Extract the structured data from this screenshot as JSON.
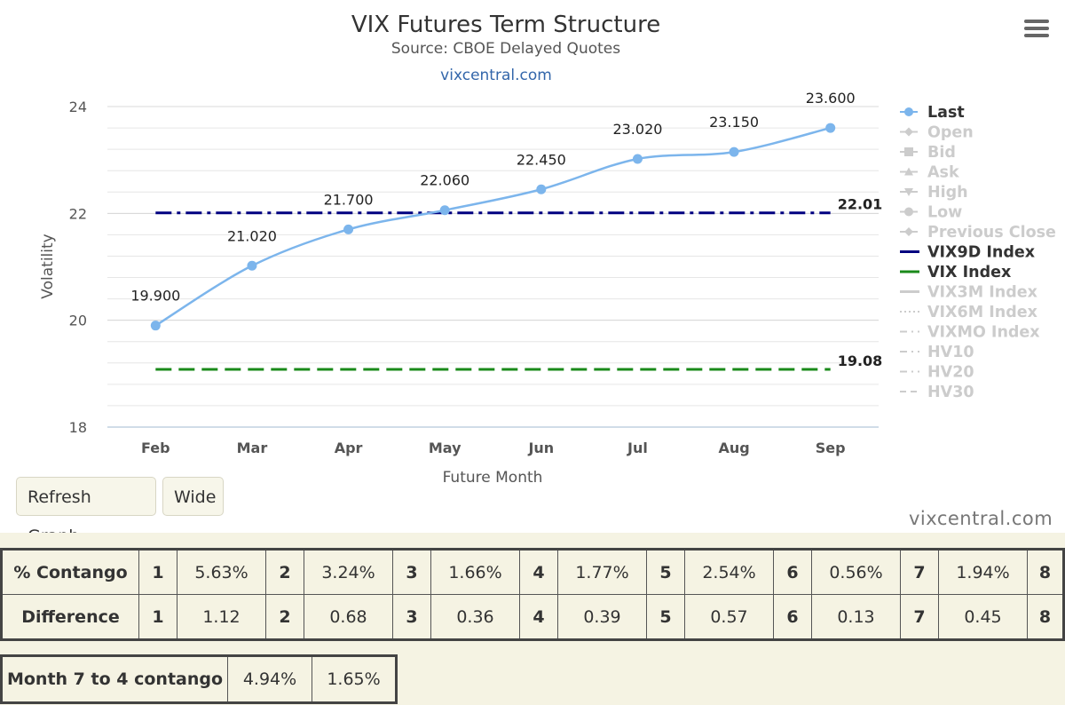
{
  "chart_data": {
    "type": "line",
    "title": "VIX Futures Term Structure",
    "subtitle": "Source: CBOE Delayed Quotes",
    "credit": "vixcentral.com",
    "xlabel": "Future Month",
    "ylabel": "Volatility",
    "categories": [
      "Feb",
      "Mar",
      "Apr",
      "May",
      "Jun",
      "Jul",
      "Aug",
      "Sep"
    ],
    "ylim": [
      18,
      24
    ],
    "yticks": [
      18,
      20,
      22,
      24
    ],
    "grid": true,
    "legend_position": "right",
    "series": [
      {
        "name": "Last",
        "values": [
          19.9,
          21.02,
          21.7,
          22.06,
          22.45,
          23.02,
          23.15,
          23.6
        ],
        "labels": [
          "19.900",
          "21.020",
          "21.700",
          "22.060",
          "22.450",
          "23.020",
          "23.150",
          "23.600"
        ],
        "color": "#7cb5ec",
        "style": "solid-with-markers"
      },
      {
        "name": "VIX9D Index",
        "value": 22.01,
        "end_label": "22.01",
        "color": "#000080",
        "style": "dash-dot"
      },
      {
        "name": "VIX Index",
        "value": 19.08,
        "end_label": "19.08",
        "color": "#1a8a1a",
        "style": "dashed"
      }
    ],
    "legend": [
      {
        "name": "Last",
        "active": true,
        "color": "#7cb5ec",
        "symbol": "circle"
      },
      {
        "name": "Open",
        "active": false,
        "symbol": "diamond"
      },
      {
        "name": "Bid",
        "active": false,
        "symbol": "square"
      },
      {
        "name": "Ask",
        "active": false,
        "symbol": "triangle"
      },
      {
        "name": "High",
        "active": false,
        "symbol": "triangle-down"
      },
      {
        "name": "Low",
        "active": false,
        "symbol": "circle"
      },
      {
        "name": "Previous Close",
        "active": false,
        "symbol": "diamond"
      },
      {
        "name": "VIX9D Index",
        "active": true,
        "color": "#000080",
        "symbol": "line"
      },
      {
        "name": "VIX Index",
        "active": true,
        "color": "#1a8a1a",
        "symbol": "line"
      },
      {
        "name": "VIX3M Index",
        "active": false,
        "symbol": "line"
      },
      {
        "name": "VIX6M Index",
        "active": false,
        "symbol": "dotted"
      },
      {
        "name": "VIXMO Index",
        "active": false,
        "symbol": "dash-dot"
      },
      {
        "name": "HV10",
        "active": false,
        "symbol": "dash-dot"
      },
      {
        "name": "HV20",
        "active": false,
        "symbol": "dash-dot"
      },
      {
        "name": "HV30",
        "active": false,
        "symbol": "dashed"
      }
    ]
  },
  "buttons": {
    "refresh": "Refresh Graph",
    "wide": "Wide"
  },
  "watermark": "vixcentral.com",
  "contango_table": {
    "rows": [
      {
        "header": "% Contango",
        "cells": [
          [
            "1",
            "5.63%"
          ],
          [
            "2",
            "3.24%"
          ],
          [
            "3",
            "1.66%"
          ],
          [
            "4",
            "1.77%"
          ],
          [
            "5",
            "2.54%"
          ],
          [
            "6",
            "0.56%"
          ],
          [
            "7",
            "1.94%"
          ]
        ],
        "last": "8"
      },
      {
        "header": "Difference",
        "cells": [
          [
            "1",
            "1.12"
          ],
          [
            "2",
            "0.68"
          ],
          [
            "3",
            "0.36"
          ],
          [
            "4",
            "0.39"
          ],
          [
            "5",
            "0.57"
          ],
          [
            "6",
            "0.13"
          ],
          [
            "7",
            "0.45"
          ]
        ],
        "last": "8"
      }
    ]
  },
  "month_table": {
    "header": "Month 7 to 4 contango",
    "values": [
      "4.94%",
      "1.65%"
    ]
  },
  "colors": {
    "background_bottom": "#f5f3e3",
    "last": "#7cb5ec",
    "vix9d": "#000080",
    "vix": "#1a8a1a",
    "legend_inactive": "#cccccc"
  }
}
